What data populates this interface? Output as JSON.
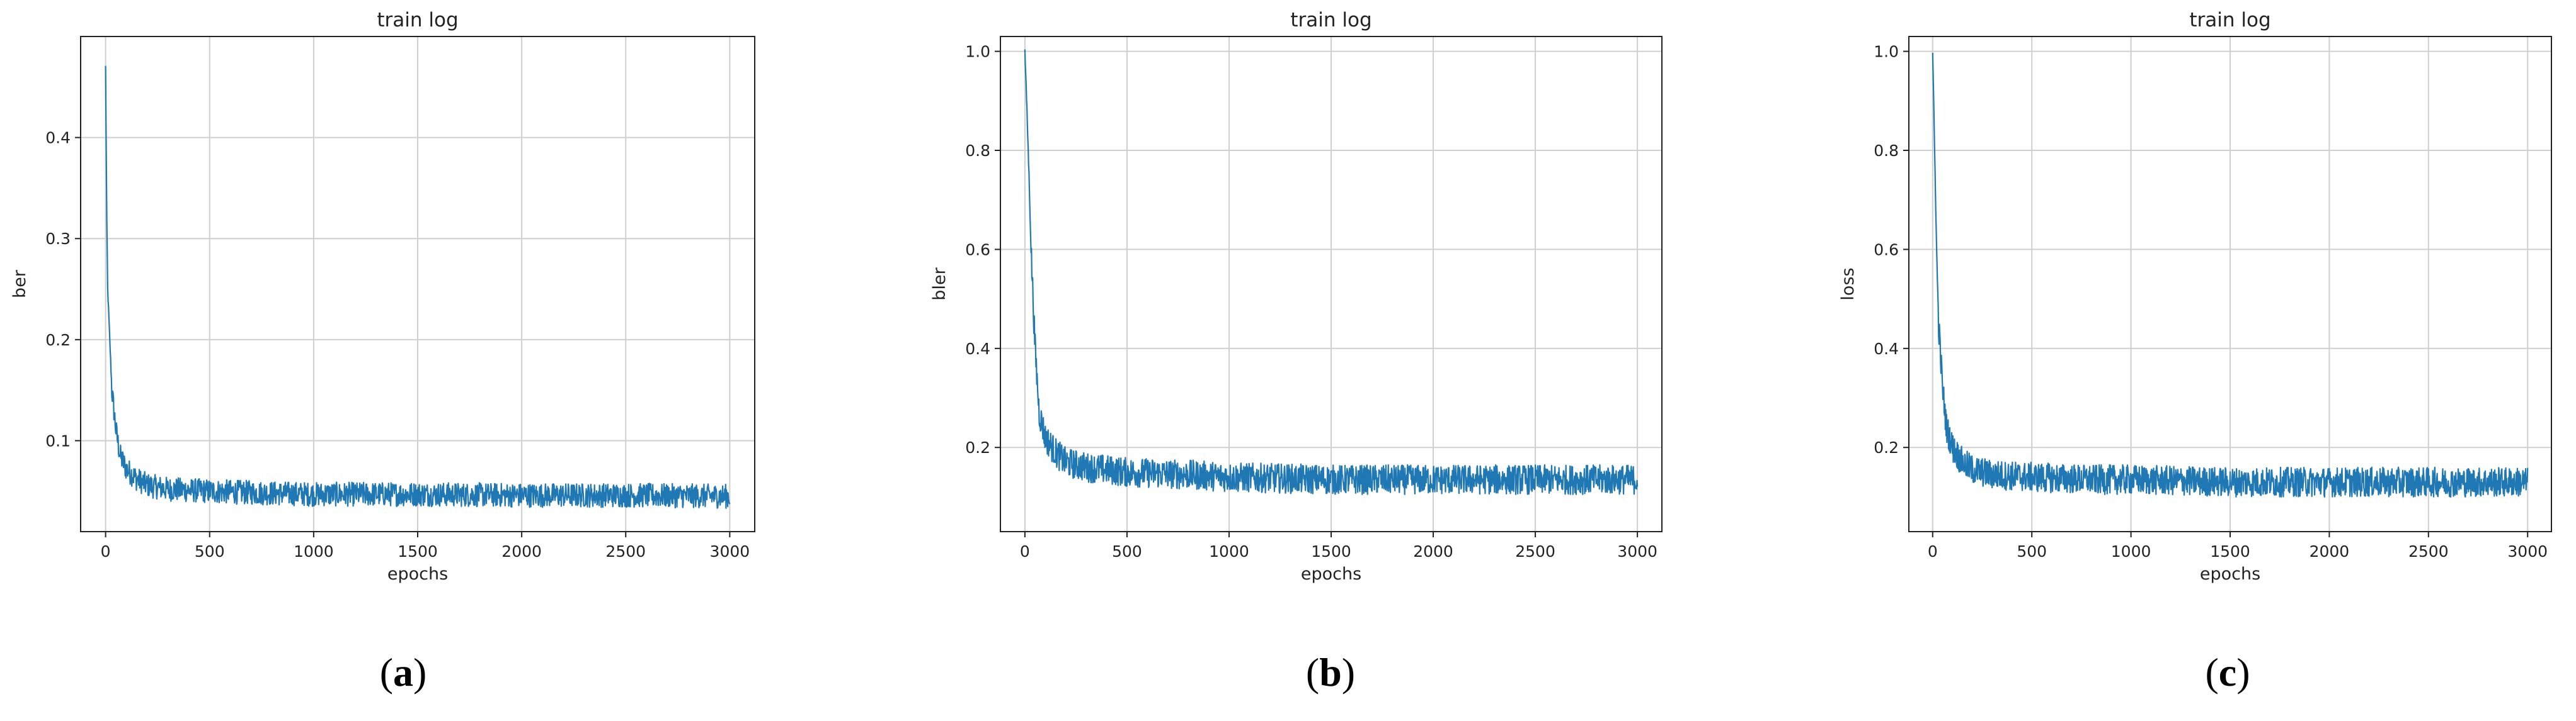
{
  "chart_data": [
    {
      "type": "line",
      "title": "train log",
      "xlabel": "epochs",
      "ylabel": "ber",
      "xlim": [
        -120,
        3120
      ],
      "ylim": [
        0.01,
        0.5
      ],
      "xticks": [
        0,
        500,
        1000,
        1500,
        2000,
        2500,
        3000
      ],
      "yticks": [
        0.1,
        0.2,
        0.3,
        0.4
      ],
      "ytick_labels": [
        "0.1",
        "0.2",
        "0.3",
        "0.4"
      ],
      "grid": true,
      "color": "#1f77b4",
      "panel_label": "a",
      "series": [
        {
          "x": [
            0,
            5,
            10,
            20,
            30,
            50,
            70,
            100,
            150,
            200,
            300,
            500,
            800,
            1000,
            1500,
            2000,
            2500,
            3000
          ],
          "y": [
            0.47,
            0.33,
            0.25,
            0.2,
            0.15,
            0.11,
            0.085,
            0.072,
            0.062,
            0.056,
            0.052,
            0.05,
            0.048,
            0.047,
            0.047,
            0.046,
            0.046,
            0.045
          ],
          "noise": 0.012
        }
      ]
    },
    {
      "type": "line",
      "title": "train log",
      "xlabel": "epochs",
      "ylabel": "bler",
      "xlim": [
        -120,
        3120
      ],
      "ylim": [
        0.03,
        1.03
      ],
      "xticks": [
        0,
        500,
        1000,
        1500,
        2000,
        2500,
        3000
      ],
      "yticks": [
        0.2,
        0.4,
        0.6,
        0.8,
        1.0
      ],
      "ytick_labels": [
        "0.2",
        "0.4",
        "0.6",
        "0.8",
        "1.0"
      ],
      "grid": true,
      "color": "#1f77b4",
      "panel_label": "b",
      "series": [
        {
          "x": [
            0,
            10,
            20,
            30,
            50,
            70,
            100,
            150,
            200,
            300,
            500,
            800,
            1000,
            1500,
            2000,
            2500,
            3000
          ],
          "y": [
            1.0,
            0.88,
            0.75,
            0.6,
            0.4,
            0.27,
            0.22,
            0.19,
            0.17,
            0.16,
            0.15,
            0.145,
            0.14,
            0.135,
            0.135,
            0.135,
            0.135
          ],
          "noise": 0.03
        }
      ]
    },
    {
      "type": "line",
      "title": "train log",
      "xlabel": "epochs",
      "ylabel": "loss",
      "xlim": [
        -120,
        3120
      ],
      "ylim": [
        0.03,
        1.03
      ],
      "xticks": [
        0,
        500,
        1000,
        1500,
        2000,
        2500,
        3000
      ],
      "yticks": [
        0.2,
        0.4,
        0.6,
        0.8,
        1.0
      ],
      "ytick_labels": [
        "0.2",
        "0.4",
        "0.6",
        "0.8",
        "1.0"
      ],
      "grid": true,
      "color": "#1f77b4",
      "panel_label": "c",
      "series": [
        {
          "x": [
            0,
            10,
            20,
            30,
            50,
            70,
            100,
            150,
            200,
            300,
            500,
            800,
            1000,
            1500,
            2000,
            2500,
            3000
          ],
          "y": [
            1.0,
            0.8,
            0.6,
            0.45,
            0.32,
            0.24,
            0.2,
            0.17,
            0.155,
            0.145,
            0.14,
            0.135,
            0.135,
            0.13,
            0.13,
            0.13,
            0.13
          ],
          "noise": 0.03
        }
      ]
    }
  ]
}
